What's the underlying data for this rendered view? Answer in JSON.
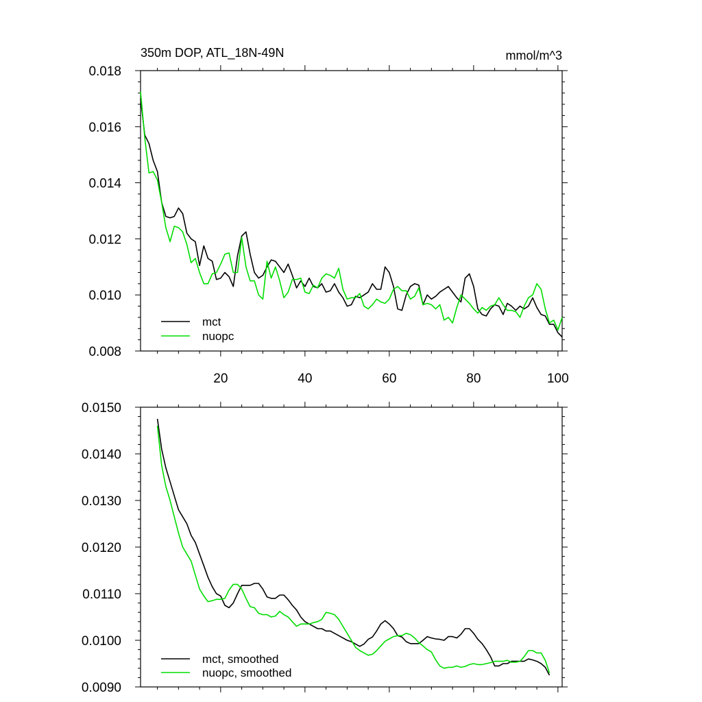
{
  "chart_data": [
    {
      "type": "line",
      "title_left": "350m DOP, ATL_18N-49N",
      "title_right": "mmol/m^3",
      "xlabel": "",
      "ylabel": "",
      "xlim": [
        1,
        101
      ],
      "ylim": [
        0.008,
        0.018
      ],
      "x_ticks": [
        20,
        40,
        60,
        80,
        100
      ],
      "x_tick_labels": [
        "20",
        "40",
        "60",
        "80",
        "100"
      ],
      "y_ticks": [
        0.008,
        0.01,
        0.012,
        0.014,
        0.016,
        0.018
      ],
      "y_tick_labels": [
        "0.008",
        "0.010",
        "0.012",
        "0.014",
        "0.016",
        "0.018"
      ],
      "grid": false,
      "legend_position": "bottom-left",
      "series": [
        {
          "name": "mct",
          "color": "#000000",
          "x": [
            1,
            2,
            3,
            4,
            5,
            6,
            7,
            8,
            9,
            10,
            11,
            12,
            13,
            14,
            15,
            16,
            17,
            18,
            19,
            20,
            21,
            22,
            23,
            24,
            25,
            26,
            27,
            28,
            29,
            30,
            31,
            32,
            33,
            34,
            35,
            36,
            37,
            38,
            39,
            40,
            41,
            42,
            43,
            44,
            45,
            46,
            47,
            48,
            49,
            50,
            51,
            52,
            53,
            54,
            55,
            56,
            57,
            58,
            59,
            60,
            61,
            62,
            63,
            64,
            65,
            66,
            67,
            68,
            69,
            70,
            71,
            72,
            73,
            74,
            75,
            76,
            77,
            78,
            79,
            80,
            81,
            82,
            83,
            84,
            85,
            86,
            87,
            88,
            89,
            90,
            91,
            92,
            93,
            94,
            95,
            96,
            97,
            98,
            99,
            100,
            101
          ],
          "values": [
            0.017,
            0.0157,
            0.0154,
            0.0148,
            0.0144,
            0.0133,
            0.0128,
            0.01275,
            0.0128,
            0.0131,
            0.0129,
            0.0122,
            0.012,
            0.0119,
            0.01105,
            0.01175,
            0.0113,
            0.0112,
            0.01055,
            0.0106,
            0.0108,
            0.01065,
            0.0103,
            0.0114,
            0.0121,
            0.01225,
            0.01145,
            0.0108,
            0.0106,
            0.0107,
            0.011,
            0.01125,
            0.0112,
            0.011,
            0.0108,
            0.0111,
            0.0107,
            0.01025,
            0.0105,
            0.0103,
            0.0106,
            0.0103,
            0.01025,
            0.0104,
            0.0101,
            0.01015,
            0.0104,
            0.0101,
            0.0099,
            0.0096,
            0.00965,
            0.00995,
            0.0099,
            0.01,
            0.0101,
            0.0104,
            0.0102,
            0.0102,
            0.011,
            0.0108,
            0.0103,
            0.0095,
            0.00945,
            0.01,
            0.0103,
            0.0104,
            0.01035,
            0.00965,
            0.01,
            0.00985,
            0.00995,
            0.0101,
            0.0102,
            0.0103,
            0.0101,
            0.0099,
            0.00975,
            0.0106,
            0.01075,
            0.0103,
            0.0095,
            0.0093,
            0.00925,
            0.0095,
            0.00965,
            0.0096,
            0.0093,
            0.0097,
            0.0096,
            0.00945,
            0.0096,
            0.0095,
            0.0096,
            0.0099,
            0.00955,
            0.0093,
            0.00925,
            0.00895,
            0.00895,
            0.00865,
            0.0085
          ]
        },
        {
          "name": "nuopc",
          "color": "#00dd00",
          "x": [
            1,
            2,
            3,
            4,
            5,
            6,
            7,
            8,
            9,
            10,
            11,
            12,
            13,
            14,
            15,
            16,
            17,
            18,
            19,
            20,
            21,
            22,
            23,
            24,
            25,
            26,
            27,
            28,
            29,
            30,
            31,
            32,
            33,
            34,
            35,
            36,
            37,
            38,
            39,
            40,
            41,
            42,
            43,
            44,
            45,
            46,
            47,
            48,
            49,
            50,
            51,
            52,
            53,
            54,
            55,
            56,
            57,
            58,
            59,
            60,
            61,
            62,
            63,
            64,
            65,
            66,
            67,
            68,
            69,
            70,
            71,
            72,
            73,
            74,
            75,
            76,
            77,
            78,
            79,
            80,
            81,
            82,
            83,
            84,
            85,
            86,
            87,
            88,
            89,
            90,
            91,
            92,
            93,
            94,
            95,
            96,
            97,
            98,
            99,
            100,
            101
          ],
          "values": [
            0.01725,
            0.0156,
            0.01435,
            0.0144,
            0.0141,
            0.0133,
            0.0124,
            0.0119,
            0.01245,
            0.0124,
            0.01225,
            0.0118,
            0.01115,
            0.0113,
            0.0108,
            0.0104,
            0.0104,
            0.01075,
            0.0108,
            0.0111,
            0.01145,
            0.0115,
            0.0108,
            0.0108,
            0.01205,
            0.011,
            0.0105,
            0.0105,
            0.01,
            0.00985,
            0.0112,
            0.0106,
            0.011,
            0.0105,
            0.0099,
            0.0101,
            0.01055,
            0.01055,
            0.0106,
            0.0101,
            0.01005,
            0.01035,
            0.01025,
            0.0106,
            0.01075,
            0.0107,
            0.0106,
            0.01095,
            0.0102,
            0.00985,
            0.0099,
            0.0099,
            0.01005,
            0.0096,
            0.0095,
            0.00965,
            0.00985,
            0.00975,
            0.0097,
            0.00985,
            0.0102,
            0.0103,
            0.01015,
            0.01015,
            0.00985,
            0.00995,
            0.01025,
            0.00965,
            0.0097,
            0.00965,
            0.0095,
            0.00965,
            0.0091,
            0.0092,
            0.009,
            0.00955,
            0.01,
            0.00985,
            0.0097,
            0.0095,
            0.00935,
            0.00955,
            0.00945,
            0.0096,
            0.00965,
            0.0099,
            0.00965,
            0.00945,
            0.00945,
            0.0094,
            0.0092,
            0.0096,
            0.0099,
            0.01,
            0.0104,
            0.0102,
            0.0095,
            0.009,
            0.0091,
            0.00875,
            0.0092
          ]
        }
      ]
    },
    {
      "type": "line",
      "title_left": "",
      "title_right": "",
      "xlabel": "",
      "ylabel": "",
      "xlim": [
        1,
        101
      ],
      "ylim": [
        0.009,
        0.015
      ],
      "x_ticks": [
        20,
        40,
        60,
        80,
        100
      ],
      "x_tick_labels": [],
      "y_ticks": [
        0.009,
        0.01,
        0.011,
        0.012,
        0.013,
        0.014,
        0.015
      ],
      "y_tick_labels": [
        "0.0090",
        "0.0100",
        "0.0110",
        "0.0120",
        "0.0130",
        "0.0140",
        "0.0150"
      ],
      "grid": false,
      "legend_position": "bottom-left",
      "series": [
        {
          "name": "mct, smoothed",
          "color": "#000000",
          "x": [
            5,
            6,
            7,
            8,
            9,
            10,
            11,
            12,
            13,
            14,
            15,
            16,
            17,
            18,
            19,
            20,
            21,
            22,
            23,
            24,
            25,
            26,
            27,
            28,
            29,
            30,
            31,
            32,
            33,
            34,
            35,
            36,
            37,
            38,
            39,
            40,
            41,
            42,
            43,
            44,
            45,
            46,
            47,
            48,
            49,
            50,
            51,
            52,
            53,
            54,
            55,
            56,
            57,
            58,
            59,
            60,
            61,
            62,
            63,
            64,
            65,
            66,
            67,
            68,
            69,
            70,
            71,
            72,
            73,
            74,
            75,
            76,
            77,
            78,
            79,
            80,
            81,
            82,
            83,
            84,
            85,
            86,
            87,
            88,
            89,
            90,
            91,
            92,
            93,
            94,
            95,
            96,
            97,
            98
          ],
          "values": [
            0.01475,
            0.0141,
            0.0137,
            0.0134,
            0.0131,
            0.0128,
            0.01265,
            0.0125,
            0.01225,
            0.0121,
            0.01185,
            0.0116,
            0.01135,
            0.01115,
            0.011,
            0.01095,
            0.01075,
            0.0107,
            0.0108,
            0.011,
            0.01118,
            0.01118,
            0.01118,
            0.01122,
            0.01122,
            0.0111,
            0.01093,
            0.0109,
            0.0109,
            0.01097,
            0.01097,
            0.01087,
            0.01075,
            0.01065,
            0.0105,
            0.0104,
            0.01035,
            0.0103,
            0.01025,
            0.01025,
            0.0102,
            0.0102,
            0.01015,
            0.0101,
            0.01005,
            0.01,
            0.00997,
            0.00992,
            0.00987,
            0.00992,
            0.01002,
            0.01007,
            0.0102,
            0.01035,
            0.01042,
            0.01035,
            0.01025,
            0.0101,
            0.01007,
            0.00997,
            0.00993,
            0.00993,
            0.00993,
            0.01,
            0.01008,
            0.01005,
            0.01003,
            0.01002,
            0.01,
            0.01008,
            0.01008,
            0.01005,
            0.01013,
            0.01025,
            0.01025,
            0.01015,
            0.01002,
            0.00993,
            0.0098,
            0.00965,
            0.00945,
            0.00945,
            0.0095,
            0.0095,
            0.00955,
            0.00955,
            0.00955,
            0.00955,
            0.0096,
            0.00958,
            0.00955,
            0.0095,
            0.00942,
            0.00925
          ]
        },
        {
          "name": "nuopc, smoothed",
          "color": "#00dd00",
          "x": [
            5,
            6,
            7,
            8,
            9,
            10,
            11,
            12,
            13,
            14,
            15,
            16,
            17,
            18,
            19,
            20,
            21,
            22,
            23,
            24,
            25,
            26,
            27,
            28,
            29,
            30,
            31,
            32,
            33,
            34,
            35,
            36,
            37,
            38,
            39,
            40,
            41,
            42,
            43,
            44,
            45,
            46,
            47,
            48,
            49,
            50,
            51,
            52,
            53,
            54,
            55,
            56,
            57,
            58,
            59,
            60,
            61,
            62,
            63,
            64,
            65,
            66,
            67,
            68,
            69,
            70,
            71,
            72,
            73,
            74,
            75,
            76,
            77,
            78,
            79,
            80,
            81,
            82,
            83,
            84,
            85,
            86,
            87,
            88,
            89,
            90,
            91,
            92,
            93,
            94,
            95,
            96,
            97,
            98
          ],
          "values": [
            0.0146,
            0.01375,
            0.0133,
            0.013,
            0.01265,
            0.0123,
            0.012,
            0.01185,
            0.0117,
            0.0114,
            0.0111,
            0.01095,
            0.01083,
            0.01085,
            0.01088,
            0.01088,
            0.0109,
            0.01108,
            0.0112,
            0.0112,
            0.0111,
            0.0109,
            0.01072,
            0.0107,
            0.01058,
            0.01055,
            0.01055,
            0.0105,
            0.01052,
            0.01062,
            0.01055,
            0.0105,
            0.0104,
            0.0103,
            0.01035,
            0.01035,
            0.01035,
            0.01038,
            0.0104,
            0.01045,
            0.0106,
            0.01058,
            0.01055,
            0.01045,
            0.0103,
            0.01015,
            0.01,
            0.00985,
            0.00978,
            0.00973,
            0.00968,
            0.0097,
            0.00978,
            0.00988,
            0.00998,
            0.01003,
            0.01008,
            0.0101,
            0.0101,
            0.01015,
            0.01012,
            0.01005,
            0.00995,
            0.00988,
            0.0098,
            0.00975,
            0.00958,
            0.00945,
            0.0094,
            0.00942,
            0.00942,
            0.00945,
            0.00942,
            0.00944,
            0.00948,
            0.0095,
            0.00948,
            0.00948,
            0.0095,
            0.00952,
            0.00955,
            0.00955,
            0.00955,
            0.00957,
            0.00953,
            0.00953,
            0.00955,
            0.00965,
            0.00978,
            0.00978,
            0.00973,
            0.00973,
            0.00957,
            0.0093
          ]
        }
      ]
    }
  ]
}
